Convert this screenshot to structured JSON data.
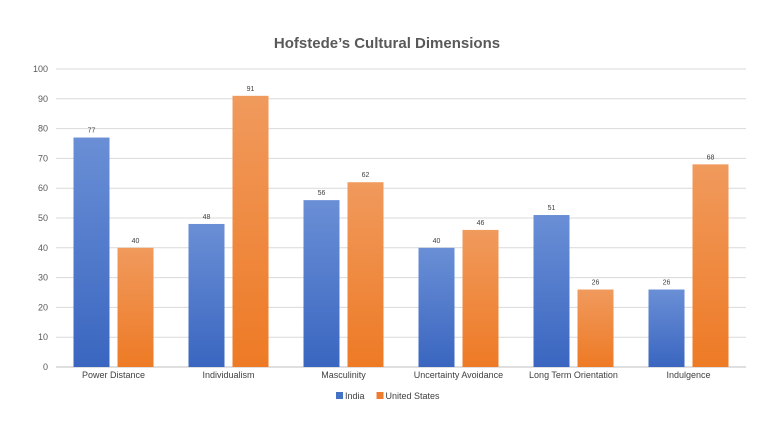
{
  "chart_data": {
    "type": "bar",
    "title": "Hofstede’s Cultural Dimensions",
    "categories": [
      "Power Distance",
      "Individualism",
      "Masculinity",
      "Uncertainty Avoidance",
      "Long Term Orientation",
      "Indulgence"
    ],
    "series": [
      {
        "name": "India",
        "values": [
          77,
          48,
          56,
          40,
          51,
          26
        ],
        "color": "#4472c4"
      },
      {
        "name": "United States",
        "values": [
          40,
          91,
          62,
          46,
          26,
          68
        ],
        "color": "#ed7d31"
      }
    ],
    "ylim": [
      0,
      100
    ],
    "yticks": [
      "0",
      "10",
      "20",
      "30",
      "40",
      "50",
      "60",
      "70",
      "80",
      "90",
      "100"
    ],
    "grid": true,
    "legend": "bottom"
  }
}
